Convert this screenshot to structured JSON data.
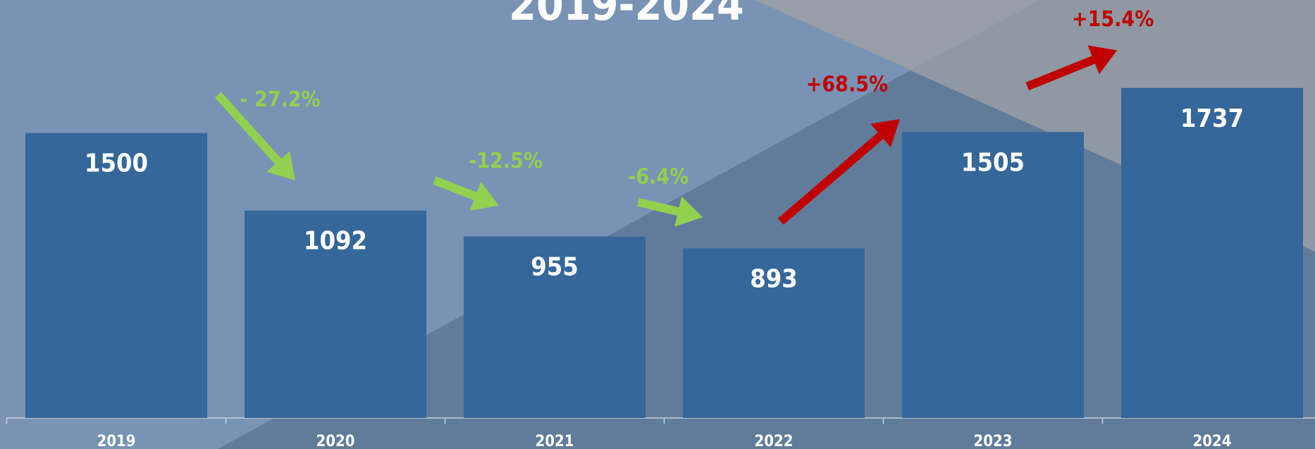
{
  "chart_data": {
    "type": "bar",
    "title": "2019-2024",
    "categories": [
      "2019",
      "2020",
      "2021",
      "2022",
      "2023",
      "2024"
    ],
    "values": [
      1500,
      1092,
      955,
      893,
      1505,
      1737
    ],
    "color": "#35679a",
    "ylim": [
      0,
      2200
    ],
    "annotations": [
      {
        "text": "- 27.2%",
        "color": "#92d050"
      },
      {
        "text": "-12.5%",
        "color": "#92d050"
      },
      {
        "text": "-6.4%",
        "color": "#92d050"
      },
      {
        "text": "+68.5%",
        "color": "#c00000"
      },
      {
        "text": "+15.4%",
        "color": "#c00000"
      }
    ]
  }
}
